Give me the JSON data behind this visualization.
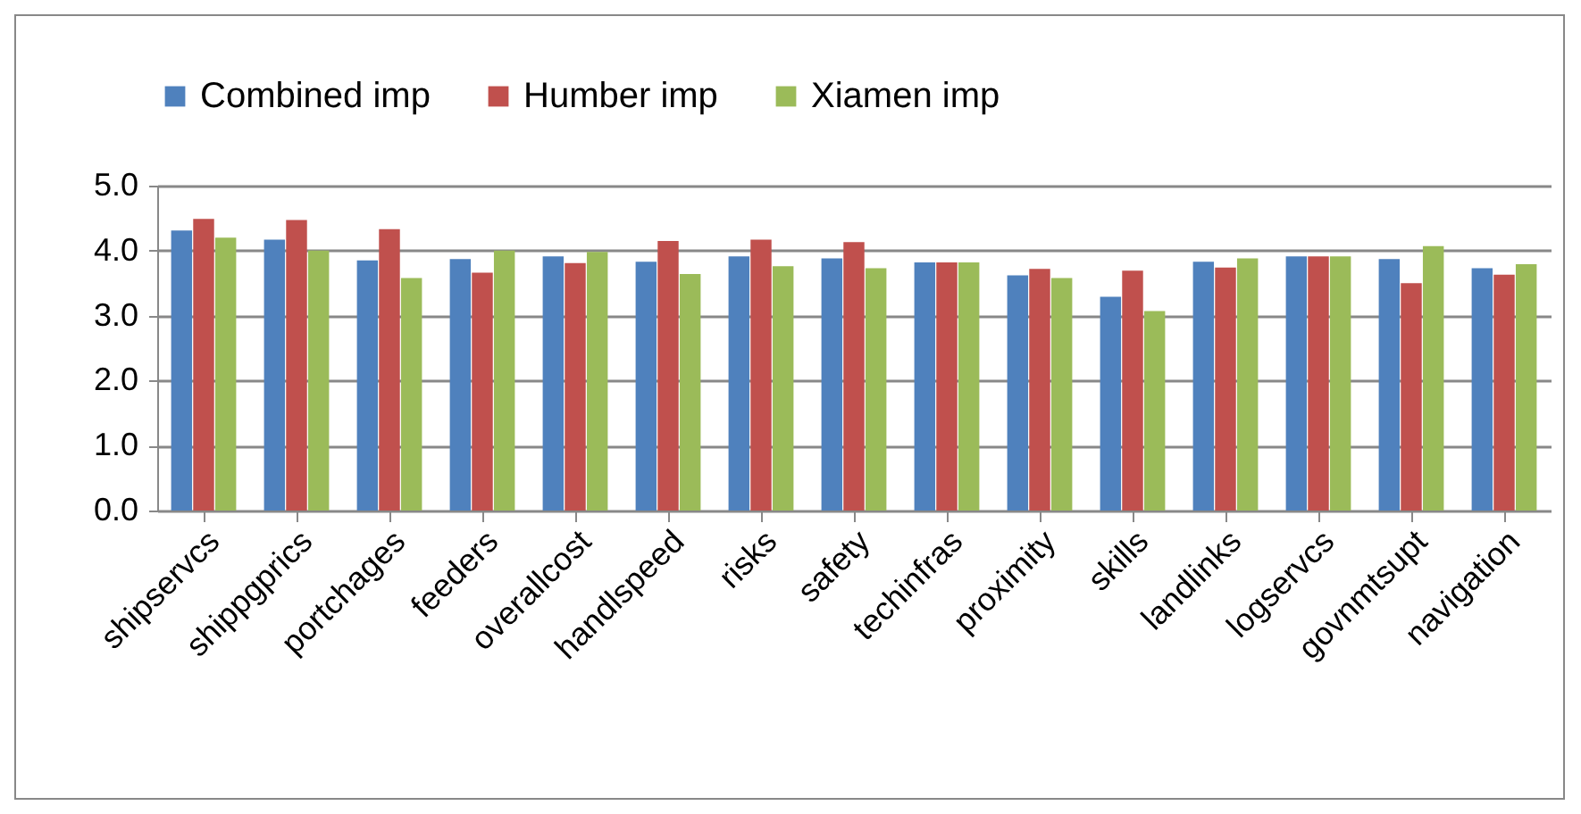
{
  "chart_data": {
    "type": "bar",
    "categories": [
      "shipservcs",
      "shippgprics",
      "portchages",
      "feeders",
      "overallcost",
      "handlspeed",
      "risks",
      "safety",
      "techinfras",
      "proximity",
      "skills",
      "landlinks",
      "logservcs",
      "govnmtsupt",
      "navigation"
    ],
    "series": [
      {
        "name": "Combined imp",
        "color": "#4f81bd",
        "values": [
          4.31,
          4.17,
          3.85,
          3.87,
          3.91,
          3.83,
          3.91,
          3.88,
          3.82,
          3.62,
          3.29,
          3.83,
          3.91,
          3.87,
          3.73
        ]
      },
      {
        "name": "Humber imp",
        "color": "#c0504d",
        "values": [
          4.49,
          4.47,
          4.33,
          3.66,
          3.81,
          4.15,
          4.17,
          4.13,
          3.82,
          3.72,
          3.69,
          3.74,
          3.91,
          3.5,
          3.63
        ]
      },
      {
        "name": "Xiamen imp",
        "color": "#9bbb59",
        "values": [
          4.2,
          4.0,
          3.58,
          4.0,
          3.98,
          3.64,
          3.76,
          3.73,
          3.82,
          3.58,
          3.07,
          3.88,
          3.91,
          4.07,
          3.79
        ]
      }
    ],
    "ylim": [
      0,
      5
    ],
    "yticks": [
      {
        "value": 0,
        "label": "0.0"
      },
      {
        "value": 1,
        "label": "1.0"
      },
      {
        "value": 2,
        "label": "2.0"
      },
      {
        "value": 3,
        "label": "3.0"
      },
      {
        "value": 4,
        "label": "4.0"
      },
      {
        "value": 5,
        "label": "5.0"
      }
    ],
    "grid": "y",
    "legend": "top"
  }
}
